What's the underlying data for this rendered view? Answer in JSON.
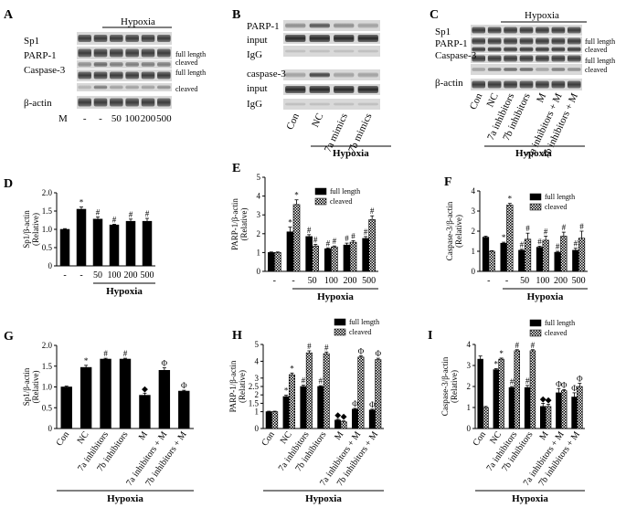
{
  "panels": {
    "A": {
      "label": "A",
      "header": "Hypoxia",
      "rows": [
        "Sp1",
        "PARP-1",
        "Caspase-3",
        "β-actin"
      ],
      "side_labels": [
        "full length",
        "cleaved",
        "full length",
        "cleaved"
      ],
      "m_label": "M",
      "lanes": [
        "-",
        "-",
        "50",
        "100",
        "200",
        "500"
      ]
    },
    "B": {
      "label": "B",
      "rows": [
        "PARP-1",
        "input",
        "IgG",
        "caspase-3",
        "input",
        "IgG"
      ],
      "lanes": [
        "Con",
        "NC",
        "7a mimics",
        "7b mimics"
      ],
      "footer": "Hypoxia"
    },
    "C": {
      "label": "C",
      "header": "Hypoxia",
      "rows": [
        "Sp1",
        "PARP-1",
        "Caspase-3",
        "β-actin"
      ],
      "side_labels": [
        "full length",
        "cleaved",
        "full length",
        "cleaved"
      ],
      "lanes": [
        "Con",
        "NC",
        "7a inhibitors",
        "7b inhibitors",
        "M",
        "7a inhibitors + M",
        "7b inhibitors + M"
      ],
      "footer": "Hypoxia"
    }
  },
  "chart_data": [
    {
      "id": "D",
      "label": "D",
      "type": "bar",
      "ylabel": "Sp1/β-actin",
      "ylabel2": "(Relative)",
      "ylim": [
        0,
        2.0
      ],
      "ticks": [
        "0",
        "0.5",
        "1.0",
        "1.5",
        "2.0"
      ],
      "categories": [
        "-",
        "-",
        "50",
        "100",
        "200",
        "500"
      ],
      "footer": "Hypoxia",
      "series": [
        {
          "values": [
            1.0,
            1.55,
            1.28,
            1.12,
            1.22,
            1.22
          ],
          "errors": [
            0.02,
            0.06,
            0.06,
            0.02,
            0.06,
            0.08
          ],
          "pattern": "solid"
        }
      ],
      "marks": [
        [
          "",
          "*",
          "#",
          "#",
          "#",
          "#"
        ]
      ]
    },
    {
      "id": "E",
      "label": "E",
      "type": "bar",
      "ylabel": "PARP-1/β-actin",
      "ylabel2": "(Relative)",
      "ylim": [
        0,
        5
      ],
      "ticks": [
        "0",
        "1",
        "2",
        "3",
        "4",
        "5"
      ],
      "categories": [
        "-",
        "-",
        "50",
        "100",
        "200",
        "500"
      ],
      "footer": "Hypoxia",
      "legend": [
        "full length",
        "cleaved"
      ],
      "series": [
        {
          "name": "full length",
          "values": [
            1.0,
            2.1,
            1.85,
            1.2,
            1.4,
            1.75
          ],
          "errors": [
            0.03,
            0.25,
            0.1,
            0.05,
            0.1,
            0.1
          ],
          "pattern": "solid"
        },
        {
          "name": "cleaved",
          "values": [
            1.0,
            3.55,
            1.35,
            1.3,
            1.55,
            2.75
          ],
          "errors": [
            0.03,
            0.25,
            0.08,
            0.05,
            0.08,
            0.2
          ],
          "pattern": "checker"
        }
      ],
      "marks": [
        [
          "",
          "*",
          "#",
          "#",
          "#",
          "#"
        ],
        [
          "",
          "*",
          "#",
          "#",
          "#",
          "#"
        ]
      ]
    },
    {
      "id": "F",
      "label": "F",
      "type": "bar",
      "ylabel": "Caspase-3/β-actin",
      "ylabel2": "(Relative)",
      "ylim": [
        0,
        4
      ],
      "ticks": [
        "0",
        "1",
        "2",
        "3",
        "4"
      ],
      "categories": [
        "-",
        "-",
        "50",
        "100",
        "200",
        "500"
      ],
      "footer": "Hypoxia",
      "legend": [
        "full length",
        "cleaved"
      ],
      "series": [
        {
          "name": "full length",
          "values": [
            1.7,
            1.4,
            1.05,
            1.2,
            0.95,
            1.05
          ],
          "errors": [
            0.05,
            0.05,
            0.05,
            0.05,
            0.05,
            0.1
          ],
          "pattern": "solid"
        },
        {
          "name": "cleaved",
          "values": [
            1.0,
            3.3,
            1.6,
            1.55,
            1.75,
            1.65
          ],
          "errors": [
            0.03,
            0.08,
            0.3,
            0.2,
            0.2,
            0.35
          ],
          "pattern": "checker"
        }
      ],
      "marks": [
        [
          "",
          "*",
          "#",
          "#",
          "#",
          "#"
        ],
        [
          "",
          "*",
          "#",
          "#",
          "#",
          "#"
        ]
      ]
    },
    {
      "id": "G",
      "label": "G",
      "type": "bar",
      "ylabel": "Sp1/β-actin",
      "ylabel2": "(Relative)",
      "ylim": [
        0,
        2.0
      ],
      "ticks": [
        "0",
        "0.5",
        "1.0",
        "1.5",
        "2.0"
      ],
      "categories": [
        "Con",
        "NC",
        "7a inhibitors",
        "7b inhibitors",
        "M",
        "7a inhibitors + M",
        "7b inhibitors + M"
      ],
      "footer": "Hypoxia",
      "series": [
        {
          "values": [
            1.0,
            1.47,
            1.67,
            1.67,
            0.8,
            1.4,
            0.9
          ],
          "errors": [
            0.02,
            0.05,
            0.02,
            0.02,
            0.05,
            0.06,
            0.02
          ],
          "pattern": "solid"
        }
      ],
      "marks": [
        [
          "",
          "*",
          "#",
          "#",
          "◆",
          "Φ",
          "Φ"
        ]
      ]
    },
    {
      "id": "H",
      "label": "H",
      "type": "bar",
      "ylabel": "PARP-1/β-actin",
      "ylabel2": "(Relative)",
      "ylim": [
        0,
        5
      ],
      "ticks": [
        "0",
        "1",
        "1.5",
        "2",
        "2.5",
        "3",
        "4",
        "5"
      ],
      "categories": [
        "Con",
        "NC",
        "7a inhibitors",
        "7b inhibitors",
        "M",
        "7a inhibitors + M",
        "7b inhibitors + M"
      ],
      "footer": "Hypoxia",
      "legend": [
        "full length",
        "cleaved"
      ],
      "series": [
        {
          "name": "full length",
          "values": [
            1.0,
            1.9,
            2.5,
            2.5,
            0.5,
            1.15,
            1.1
          ],
          "errors": [
            0.03,
            0.08,
            0.08,
            0.05,
            0.05,
            0.05,
            0.05
          ],
          "pattern": "solid"
        },
        {
          "name": "cleaved",
          "values": [
            1.0,
            3.2,
            4.5,
            4.45,
            0.4,
            4.25,
            4.1
          ],
          "errors": [
            0.03,
            0.1,
            0.12,
            0.1,
            0.05,
            0.08,
            0.08
          ],
          "pattern": "checker"
        }
      ],
      "marks": [
        [
          "",
          "*",
          "#",
          "#",
          "◆",
          "Φ",
          "Φ"
        ],
        [
          "",
          "*",
          "#",
          "#",
          "◆",
          "Φ",
          "Φ"
        ]
      ]
    },
    {
      "id": "I",
      "label": "I",
      "type": "bar",
      "ylabel": "Caspase-3/β-actin",
      "ylabel2": "(Relative)",
      "ylim": [
        0,
        4
      ],
      "ticks": [
        "0",
        "1",
        "2",
        "3",
        "4"
      ],
      "categories": [
        "Con",
        "NC",
        "7a inhibitors",
        "7b inhibitors",
        "M",
        "7a inhibitors + M",
        "7b inhibitors + M"
      ],
      "footer": "Hypoxia",
      "legend": [
        "full length",
        "cleaved"
      ],
      "series": [
        {
          "name": "full length",
          "values": [
            3.3,
            2.8,
            1.95,
            1.95,
            1.05,
            1.7,
            1.5
          ],
          "errors": [
            0.15,
            0.05,
            0.05,
            0.1,
            0.15,
            0.2,
            0.2
          ],
          "pattern": "solid"
        },
        {
          "name": "cleaved",
          "values": [
            1.0,
            3.3,
            3.7,
            3.7,
            1.05,
            1.8,
            2.0
          ],
          "errors": [
            0.05,
            0.05,
            0.05,
            0.05,
            0.1,
            0.05,
            0.15
          ],
          "pattern": "checker"
        }
      ],
      "marks": [
        [
          "",
          "*",
          "#",
          "#",
          "◆",
          "Φ",
          "Φ"
        ],
        [
          "",
          "*",
          "#",
          "#",
          "◆",
          "Φ",
          "Φ"
        ]
      ]
    }
  ]
}
